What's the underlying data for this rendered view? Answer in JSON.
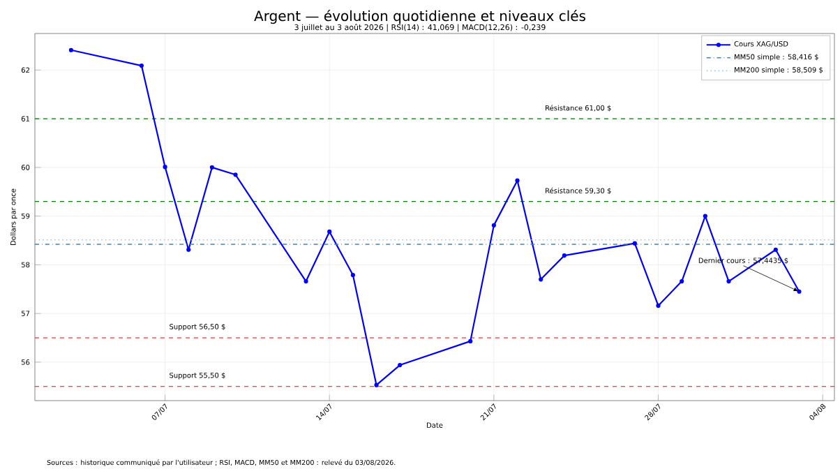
{
  "chart_data": {
    "type": "line",
    "title": "Argent — évolution quotidienne et niveaux clés",
    "subtitle": "3 juillet au 3 août 2026 | RSI(14) : 41,069 | MACD(12,26) : -0,239",
    "xlabel": "Date",
    "ylabel": "Dollars par once",
    "xlim": [
      "2026-07-01T11:00",
      "2026-08-04T12:00"
    ],
    "ylim": [
      55.21,
      62.75
    ],
    "xticks": [
      {
        "value": "2026-07-07",
        "label": "07/07"
      },
      {
        "value": "2026-07-14",
        "label": "14/07"
      },
      {
        "value": "2026-07-21",
        "label": "21/07"
      },
      {
        "value": "2026-07-28",
        "label": "28/07"
      },
      {
        "value": "2026-08-04",
        "label": "04/08"
      }
    ],
    "yticks": [
      56,
      57,
      58,
      59,
      60,
      61,
      62
    ],
    "grid": true,
    "legend": "top right",
    "series": [
      {
        "name": "Cours XAG/USD",
        "color": "#0000ff",
        "marker": "circle",
        "line_style": "solid",
        "x": [
          "2026-07-03",
          "2026-07-06",
          "2026-07-07",
          "2026-07-08",
          "2026-07-09",
          "2026-07-10",
          "2026-07-13",
          "2026-07-14",
          "2026-07-15",
          "2026-07-16",
          "2026-07-17",
          "2026-07-20",
          "2026-07-21",
          "2026-07-22",
          "2026-07-23",
          "2026-07-24",
          "2026-07-27",
          "2026-07-28",
          "2026-07-29",
          "2026-07-30",
          "2026-07-31",
          "2026-08-02",
          "2026-08-03"
        ],
        "values": [
          62.41,
          62.09,
          60.01,
          58.31,
          60.0,
          59.85,
          57.66,
          58.68,
          57.79,
          55.53,
          55.94,
          56.43,
          58.81,
          59.73,
          57.7,
          58.19,
          58.44,
          57.16,
          57.66,
          59.0,
          57.66,
          58.31,
          57.45
        ]
      },
      {
        "name": "MM50 simple : 58,416 $",
        "color": "#4682b4",
        "marker": "none",
        "line_style": "dashdot",
        "x": [
          "2026-07-01T11:00",
          "2026-08-04T12:00"
        ],
        "values": [
          58.42,
          58.42
        ]
      },
      {
        "name": "MM200 simple : 58,509 $",
        "color": "#87cefa",
        "marker": "none",
        "line_style": "dotted",
        "x": [
          "2026-07-01T11:00",
          "2026-08-04T12:00"
        ],
        "values": [
          58.51,
          58.51
        ]
      }
    ],
    "ref_lines": [
      {
        "axis": "y",
        "value": 61,
        "label": "Résistance 61,00 $",
        "color": "#008000",
        "line_style": "dashed"
      },
      {
        "axis": "y",
        "value": 59.3,
        "label": "Résistance 59,30 $",
        "color": "#008000",
        "line_style": "dashed"
      },
      {
        "axis": "y",
        "value": 56.5,
        "label": "Support 56,50 $",
        "color": "#ff0000",
        "line_style": "dashed"
      },
      {
        "axis": "y",
        "value": 55.5,
        "label": "Support 55,50 $",
        "color": "#ff0000",
        "line_style": "dashed"
      }
    ],
    "annotations": [
      {
        "text": "Dernier cours : 57,4435 $",
        "x": "2026-08-03",
        "y": 57.45
      },
      "Sources : historique communiqué par l'utilisateur ; RSI, MACD, MM50 et MM200 : relevé du 03/08/2026."
    ]
  }
}
